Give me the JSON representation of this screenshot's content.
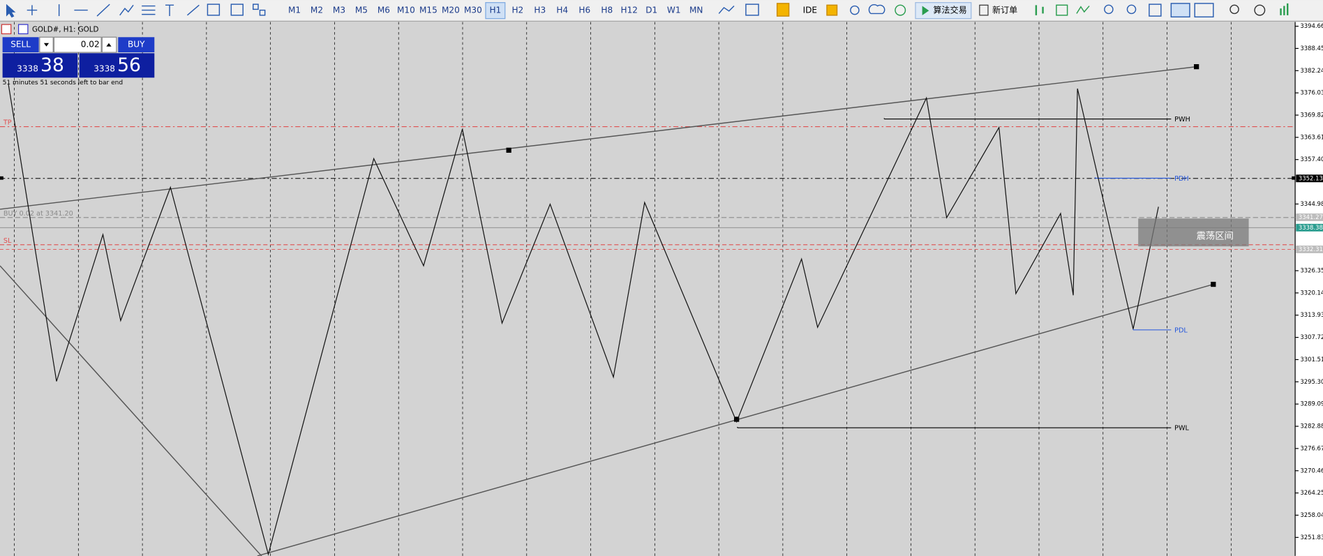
{
  "toolbar": {
    "timeframes": [
      "M1",
      "M2",
      "M3",
      "M5",
      "M6",
      "M10",
      "M15",
      "M20",
      "M30",
      "H1",
      "H2",
      "H3",
      "H4",
      "H6",
      "H8",
      "H12",
      "D1",
      "W1",
      "MN"
    ],
    "active_timeframe_index": 9,
    "ide": "IDE",
    "algo_trading": "算法交易",
    "new_order": "新订单"
  },
  "chart": {
    "title": "GOLD#, H1: GOLD",
    "countdown": "51 minutes 51 seconds left to bar end",
    "trade_panel": {
      "sell": "SELL",
      "lot": "0.02",
      "buy": "BUY",
      "sell_price_main": "3338",
      "sell_price_big": "38",
      "buy_price_main": "3338",
      "buy_price_big": "56"
    },
    "price_axis": {
      "ylim": [
        3246.65,
        3395.84
      ],
      "ticks": [
        3394.66,
        3388.45,
        3382.24,
        3376.03,
        3369.82,
        3363.61,
        {
          "value": 3357.4,
          "label": "3357.40"
        },
        3344.98,
        3326.35,
        3320.14,
        3313.93,
        3307.72,
        3301.51,
        {
          "value": 3295.3,
          "label": "3295.30"
        },
        3289.09,
        3282.88,
        3276.67,
        3270.46,
        3264.25,
        3258.04,
        3251.83
      ],
      "markers": [
        {
          "value": 3352.13,
          "bg": "#000000",
          "fg": "#ffffff"
        },
        {
          "value": 3341.27,
          "bg": "#bdbdbd",
          "fg": "#ffffff"
        },
        {
          "value": 3338.38,
          "bg": "#2a9d8f",
          "fg": "#ffffff"
        },
        {
          "value": 3332.31,
          "bg": "#bdbdbd",
          "fg": "#ffffff"
        }
      ]
    },
    "levels": [
      {
        "label": "TP",
        "price": 3366.6,
        "color": "#e05050",
        "dash": "6 3 2 3"
      },
      {
        "label": "SL",
        "price": 3333.6,
        "color": "#e05050",
        "dash": "5 3"
      },
      {
        "label": "BUY 0.02 at 3341.20",
        "price": 3341.2,
        "color": "#8a8a8a",
        "dash": "6 3"
      },
      {
        "label": "PWH",
        "price": 3368.73,
        "color": "#000000",
        "dash": ""
      },
      {
        "label": "PDH",
        "price": 3352.2,
        "color": "#2255dd",
        "dash": ""
      },
      {
        "label": "PDL",
        "price": 3309.81,
        "color": "#2255dd",
        "dash": ""
      },
      {
        "label": "PWL",
        "price": 3282.47,
        "color": "#000000",
        "dash": ""
      }
    ],
    "other_lines": [
      {
        "price": 3352.13,
        "color": "#000000",
        "dash": "6 3 2 3"
      },
      {
        "price": 3338.38,
        "color": "#888888",
        "dash": ""
      },
      {
        "price": 3332.31,
        "color": "#e05050",
        "dash": "4 3"
      }
    ],
    "zone_label": "震荡区间"
  }
}
